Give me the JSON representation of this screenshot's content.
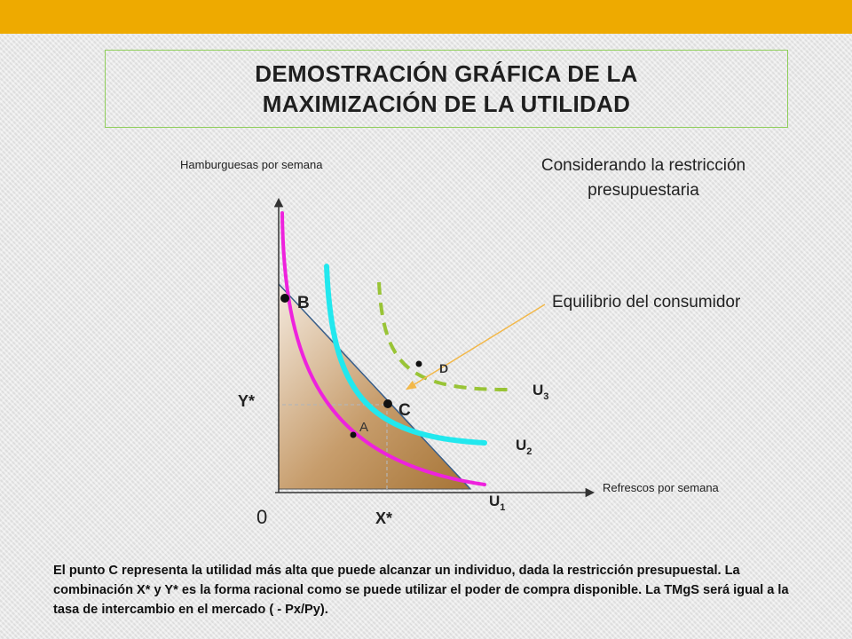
{
  "title": {
    "line1": "DEMOSTRACIÓN GRÁFICA DE LA",
    "line2": "MAXIMIZACIÓN DE LA UTILIDAD"
  },
  "y_axis_title": "Hamburguesas por semana",
  "x_axis_title": "Refrescos por semana",
  "subtitle": "Considerando la restricción presupuestaria",
  "equilibrium_label": "Equilibrio del consumidor",
  "origin_label": "0",
  "points": {
    "A": "A",
    "B": "B",
    "C": "C",
    "D": "D"
  },
  "axis_marks": {
    "y_star": "Y*",
    "x_star": "X*"
  },
  "curves": {
    "u1": {
      "base": "U",
      "sub": "1"
    },
    "u2": {
      "base": "U",
      "sub": "2"
    },
    "u3": {
      "base": "U",
      "sub": "3"
    }
  },
  "colors": {
    "top_bar": "#eeaa00",
    "title_border": "#8fce5a",
    "u1": "#ee22dd",
    "u2": "#22e8ee",
    "u3": "#99c436",
    "budget_fill": "#c9a074",
    "arrow": "#f2b84a"
  },
  "bottom_text": "El punto C representa la utilidad más alta que puede alcanzar un individuo, dada la restricción presupuestal. La combinación X* y Y* es la forma racional como se puede utilizar el poder de compra disponible. La TMgS será igual a la tasa de intercambio en el mercado ( - Px/Py)."
}
